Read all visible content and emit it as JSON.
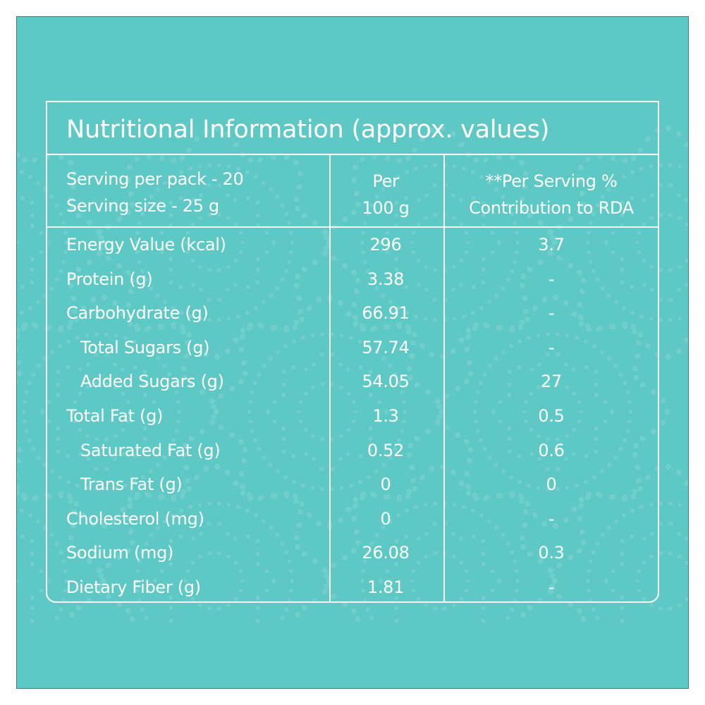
{
  "label": {
    "title": "Nutritional Information (approx. values)",
    "serving_per_pack": "Serving  per pack - 20",
    "serving_size": "Serving size - 25 g",
    "col_per100_line1": "Per",
    "col_per100_line2": "100 g",
    "col_rda_line1": "**Per Serving %",
    "col_rda_line2": "Contribution to RDA",
    "rows": [
      {
        "nutrient": "Energy Value (kcal)",
        "per100g": "296",
        "rda": "3.7",
        "indent": false
      },
      {
        "nutrient": "Protein (g)",
        "per100g": "3.38",
        "rda": "-",
        "indent": false
      },
      {
        "nutrient": "Carbohydrate (g)",
        "per100g": "66.91",
        "rda": "-",
        "indent": false
      },
      {
        "nutrient": "Total Sugars (g)",
        "per100g": "57.74",
        "rda": "-",
        "indent": true
      },
      {
        "nutrient": "Added Sugars (g)",
        "per100g": "54.05",
        "rda": "27",
        "indent": true
      },
      {
        "nutrient": "Total Fat (g)",
        "per100g": "1.3",
        "rda": "0.5",
        "indent": false
      },
      {
        "nutrient": "Saturated Fat (g)",
        "per100g": "0.52",
        "rda": "0.6",
        "indent": true
      },
      {
        "nutrient": "Trans Fat (g)",
        "per100g": "0",
        "rda": "0",
        "indent": true
      },
      {
        "nutrient": "Cholesterol (mg)",
        "per100g": "0",
        "rda": "-",
        "indent": false
      },
      {
        "nutrient": "Sodium (mg)",
        "per100g": "26.08",
        "rda": "0.3",
        "indent": false
      },
      {
        "nutrient": "Dietary Fiber (g)",
        "per100g": "1.81",
        "rda": "-",
        "indent": false
      }
    ]
  },
  "colors": {
    "background": "#5ec8c5",
    "pattern": "#7fd6d3",
    "text": "#ffffff"
  }
}
